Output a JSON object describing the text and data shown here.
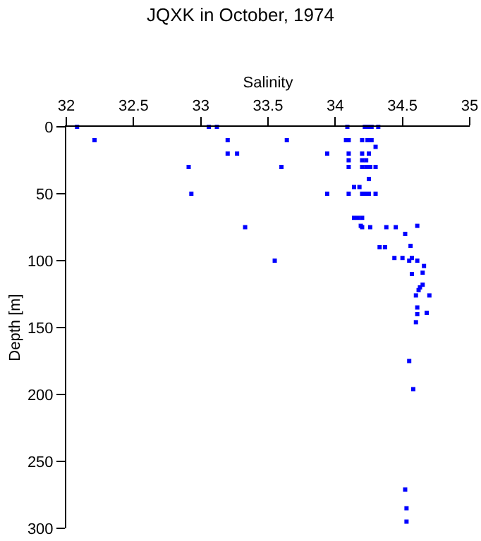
{
  "chart_data": {
    "type": "scatter",
    "title": "JQXK in October, 1974",
    "xlabel": "Salinity",
    "ylabel": "Depth [m]",
    "x": [
      32.08,
      33.06,
      33.12,
      34.09,
      34.22,
      34.25,
      34.27,
      34.32,
      32.21,
      33.2,
      33.64,
      34.08,
      34.1,
      34.2,
      34.24,
      34.27,
      34.3,
      33.2,
      33.27,
      33.94,
      34.1,
      34.2,
      34.25,
      34.1,
      34.2,
      34.23,
      32.91,
      33.6,
      34.1,
      34.2,
      34.23,
      34.26,
      34.3,
      34.25,
      34.14,
      34.18,
      32.93,
      33.94,
      34.1,
      34.2,
      34.22,
      34.25,
      34.3,
      34.14,
      34.17,
      34.2,
      34.19,
      34.61,
      33.33,
      34.2,
      34.26,
      34.38,
      34.45,
      34.52,
      34.56,
      34.33,
      34.37,
      33.55,
      34.44,
      34.5,
      34.57,
      34.55,
      34.61,
      34.66,
      34.65,
      34.57,
      34.65,
      34.63,
      34.62,
      34.6,
      34.7,
      34.61,
      34.61,
      34.68,
      34.6,
      34.55,
      34.58,
      34.52,
      34.53,
      34.53
    ],
    "values": [
      0,
      0,
      0,
      0,
      0,
      0,
      0,
      0,
      10,
      10,
      10,
      10,
      10,
      10,
      10,
      10,
      15,
      20,
      20,
      20,
      20,
      20,
      20,
      25,
      25,
      25,
      30,
      30,
      30,
      30,
      30,
      30,
      30,
      39,
      45,
      45,
      50,
      50,
      50,
      50,
      50,
      50,
      50,
      68,
      68,
      68,
      74,
      74,
      75,
      75,
      75,
      75,
      75,
      80,
      89,
      90,
      90,
      100,
      98,
      98,
      98,
      100,
      100,
      104,
      109,
      110,
      118,
      120,
      122,
      126,
      126,
      135,
      140,
      139,
      146,
      175,
      196,
      271,
      285,
      295
    ],
    "color": "#0000ff",
    "marker": "square",
    "xlim": [
      32,
      35
    ],
    "xticks": [
      32,
      32.5,
      33,
      33.5,
      34,
      34.5,
      35
    ],
    "ylim": [
      300,
      0
    ],
    "yticks": [
      0,
      50,
      100,
      150,
      200,
      250,
      300
    ]
  }
}
